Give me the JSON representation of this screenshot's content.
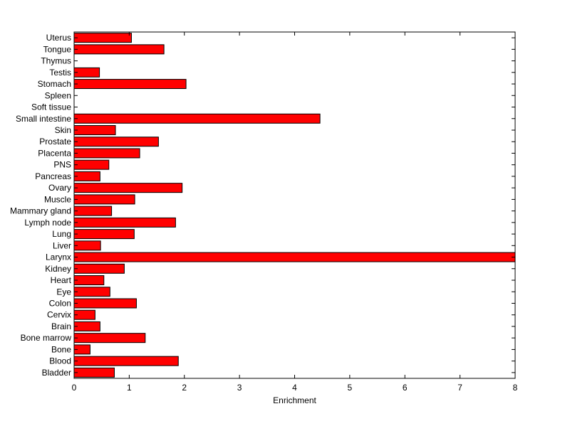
{
  "chart_data": {
    "type": "bar",
    "orientation": "horizontal",
    "title": "",
    "xlabel": "Enrichment",
    "ylabel": "",
    "xlim": [
      0,
      8
    ],
    "xticks": [
      "0",
      "1",
      "2",
      "3",
      "4",
      "5",
      "6",
      "7",
      "8"
    ],
    "grid": false,
    "bar_color": "#ff0000",
    "bar_edge_color": "#000000",
    "categories": [
      "Uterus",
      "Tongue",
      "Thymus",
      "Testis",
      "Stomach",
      "Spleen",
      "Soft tissue",
      "Small intestine",
      "Skin",
      "Prostate",
      "Placenta",
      "PNS",
      "Pancreas",
      "Ovary",
      "Muscle",
      "Mammary gland",
      "Lymph node",
      "Lung",
      "Liver",
      "Larynx",
      "Kidney",
      "Heart",
      "Eye",
      "Colon",
      "Cervix",
      "Brain",
      "Bone marrow",
      "Bone",
      "Blood",
      "Bladder"
    ],
    "values": [
      1.04,
      1.63,
      0,
      0.46,
      2.03,
      0,
      0,
      4.46,
      0.75,
      1.53,
      1.19,
      0.63,
      0.47,
      1.96,
      1.1,
      0.68,
      1.84,
      1.09,
      0.48,
      8.0,
      0.91,
      0.54,
      0.65,
      1.13,
      0.38,
      0.47,
      1.29,
      0.29,
      1.89,
      0.73
    ]
  }
}
